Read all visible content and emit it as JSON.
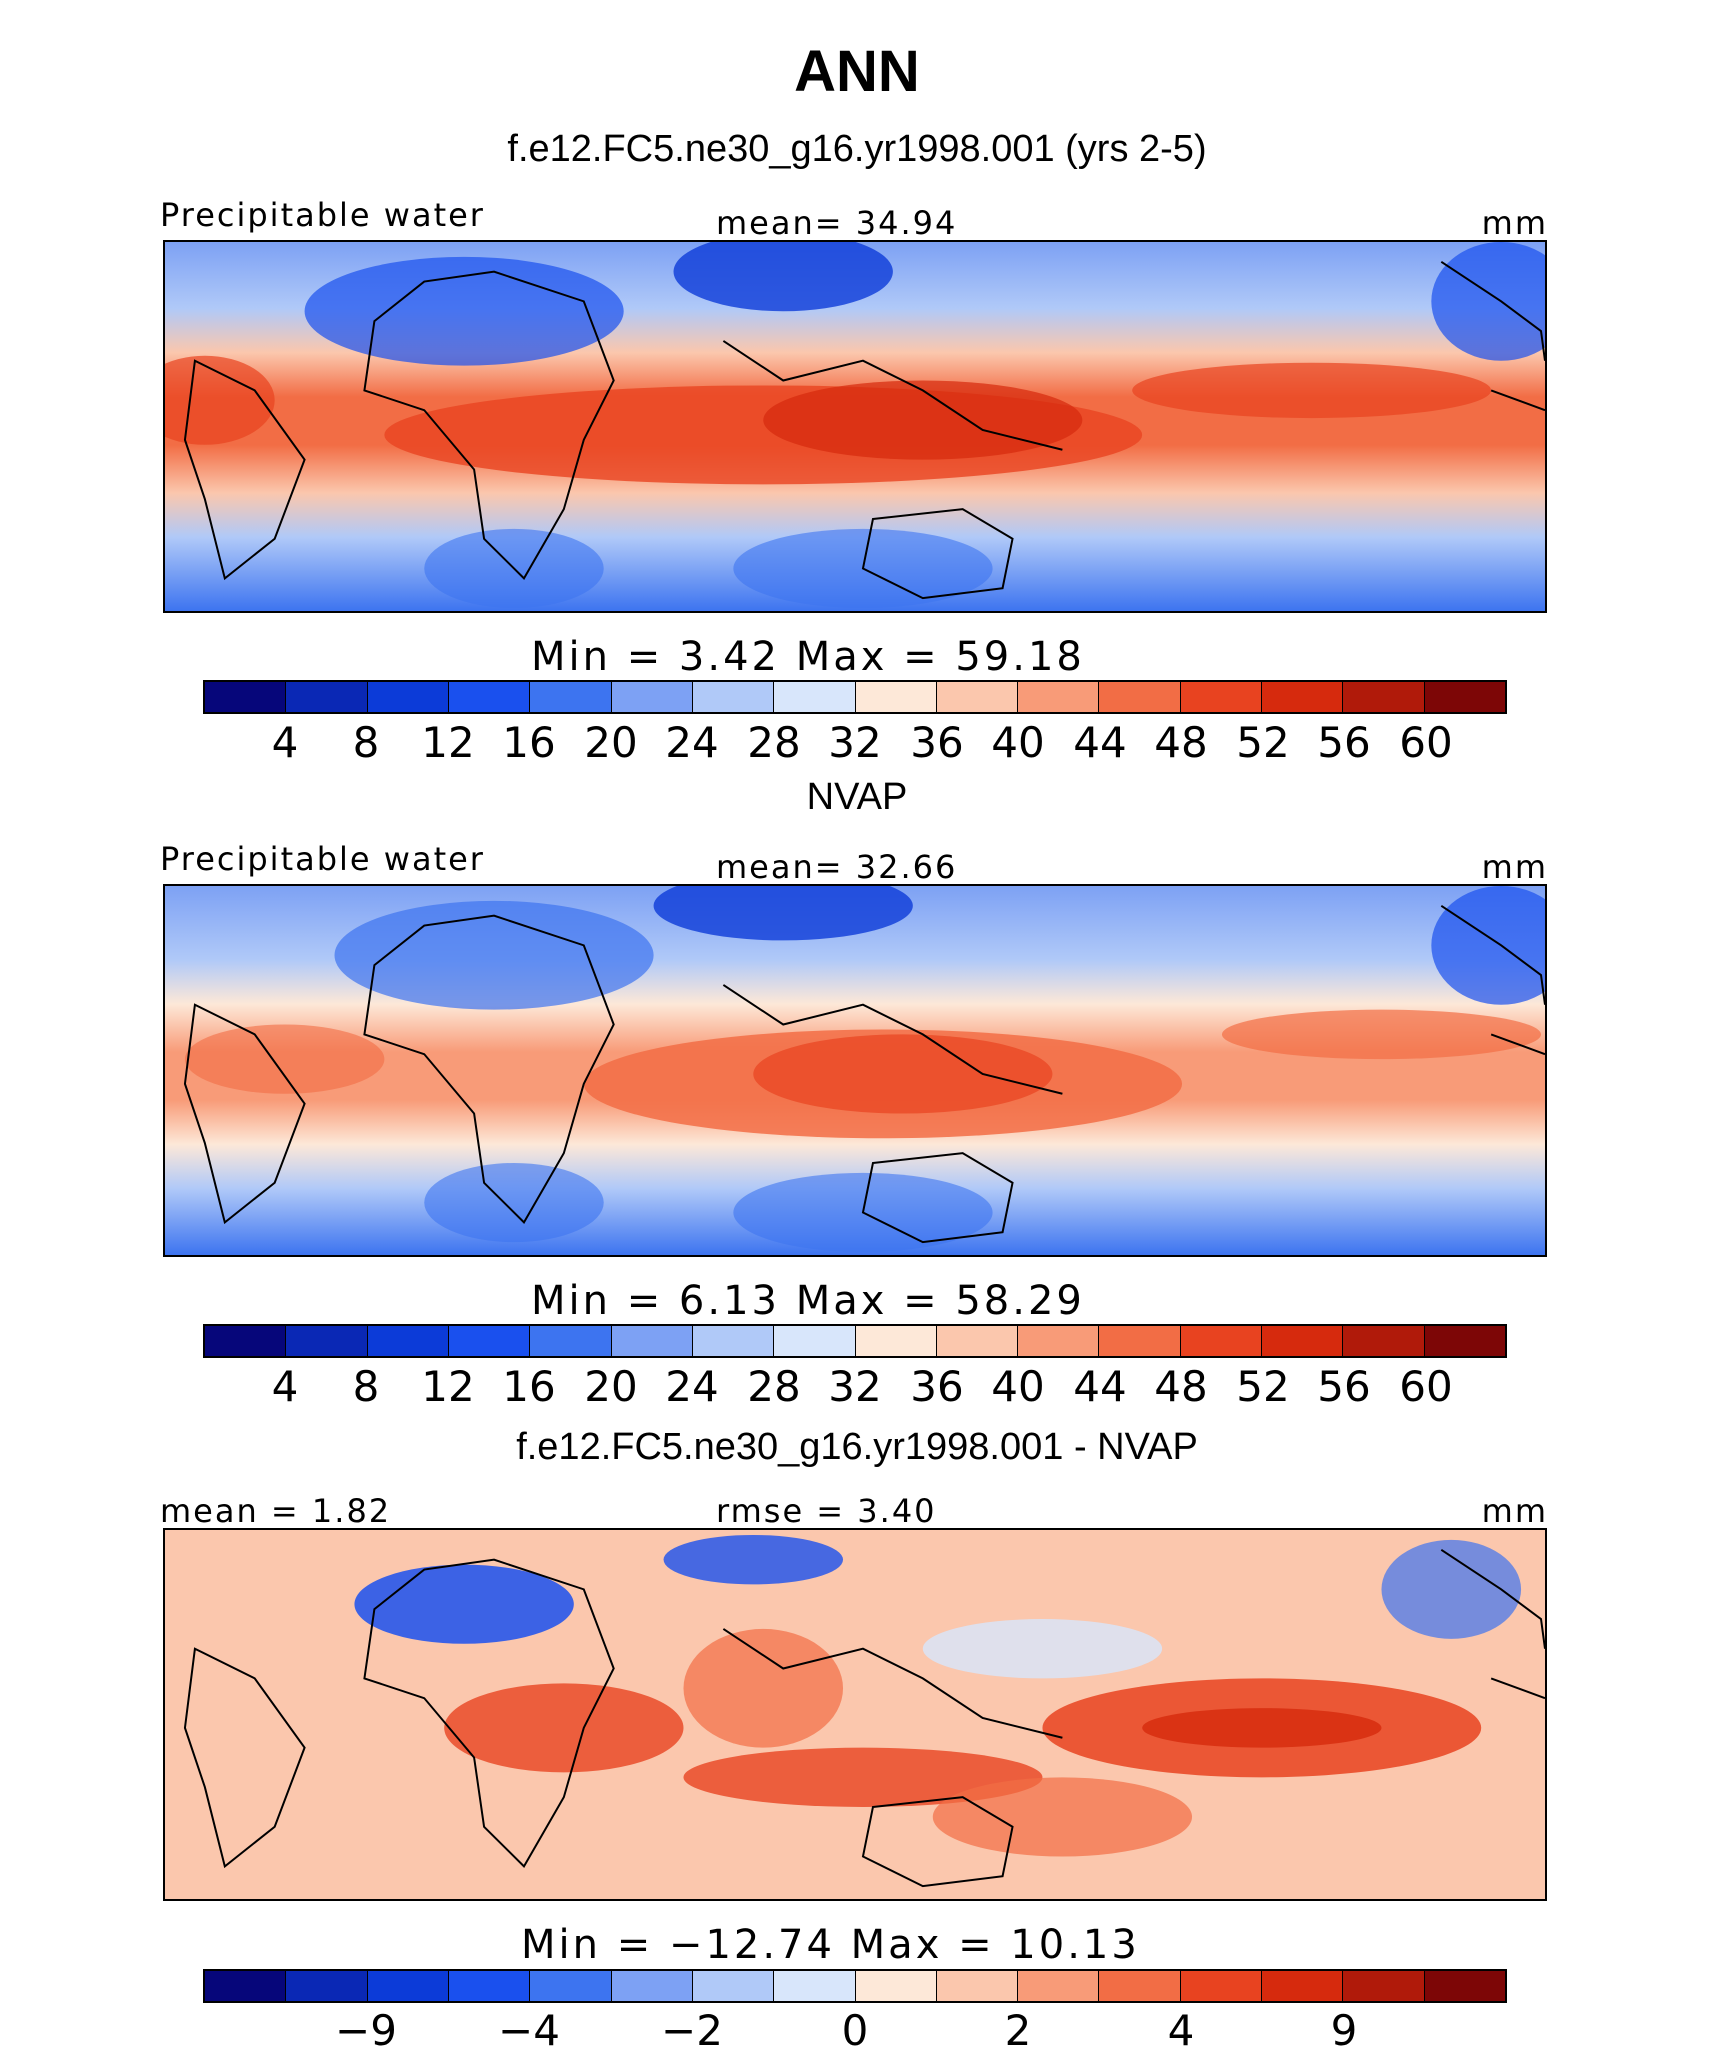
{
  "figure": {
    "title": "ANN",
    "model_title": "f.e12.FC5.ne30_g16.yr1998.001 (yrs 2-5)",
    "obs_title": "NVAP",
    "diff_title": "f.e12.FC5.ne30_g16.yr1998.001 - NVAP"
  },
  "panels": [
    {
      "label_left": "Precipitable water",
      "label_center": "mean=   34.94",
      "units": "mm",
      "minmax": "Min  =     3.42  Max  =    59.18"
    },
    {
      "label_left": "Precipitable water",
      "label_center": "mean=   32.66",
      "units": "mm",
      "minmax": "Min  =     6.13  Max  =    58.29"
    },
    {
      "label_left": "mean =    1.82",
      "label_center": "rmse =    3.40",
      "units": "mm",
      "minmax": "Min  = −12.74  Max  =   10.13"
    }
  ],
  "colorbars": {
    "abs_colors": [
      "#06067a",
      "#0a28b5",
      "#0c3bd8",
      "#1a50ee",
      "#3d74f0",
      "#7da1f4",
      "#b0c9f8",
      "#d8e6fb",
      "#fde8d8",
      "#fbc7ad",
      "#f89b78",
      "#f26d45",
      "#e84320",
      "#d62a0d",
      "#b01a0a",
      "#7d0606"
    ],
    "abs_ticks": [
      "4",
      "8",
      "12",
      "16",
      "20",
      "24",
      "28",
      "32",
      "36",
      "40",
      "44",
      "48",
      "52",
      "56",
      "60"
    ],
    "diff_colors": [
      "#06067a",
      "#0a28b5",
      "#0c3bd8",
      "#1a50ee",
      "#3d74f0",
      "#7da1f4",
      "#b0c9f8",
      "#d8e6fb",
      "#fde8d8",
      "#fbc7ad",
      "#f89b78",
      "#f26d45",
      "#e84320",
      "#d62a0d",
      "#b01a0a",
      "#7d0606"
    ],
    "diff_ticks": [
      "−9",
      "−4",
      "−2",
      "0",
      "2",
      "4",
      "9"
    ]
  },
  "chart_data": [
    {
      "type": "heatmap",
      "title": "f.e12.FC5.ne30_g16.yr1998.001 (yrs 2-5)",
      "variable": "Precipitable water",
      "units": "mm",
      "mean": 34.94,
      "min": 3.42,
      "max": 59.18,
      "levels": [
        4,
        8,
        12,
        16,
        20,
        24,
        28,
        32,
        36,
        40,
        44,
        48,
        52,
        56,
        60
      ]
    },
    {
      "type": "heatmap",
      "title": "NVAP",
      "variable": "Precipitable water",
      "units": "mm",
      "mean": 32.66,
      "min": 6.13,
      "max": 58.29,
      "levels": [
        4,
        8,
        12,
        16,
        20,
        24,
        28,
        32,
        36,
        40,
        44,
        48,
        52,
        56,
        60
      ]
    },
    {
      "type": "heatmap",
      "title": "f.e12.FC5.ne30_g16.yr1998.001 - NVAP",
      "units": "mm",
      "mean": 1.82,
      "rmse": 3.4,
      "min": -12.74,
      "max": 10.13,
      "levels": [
        -9,
        -4,
        -2,
        0,
        2,
        4,
        9
      ]
    }
  ]
}
